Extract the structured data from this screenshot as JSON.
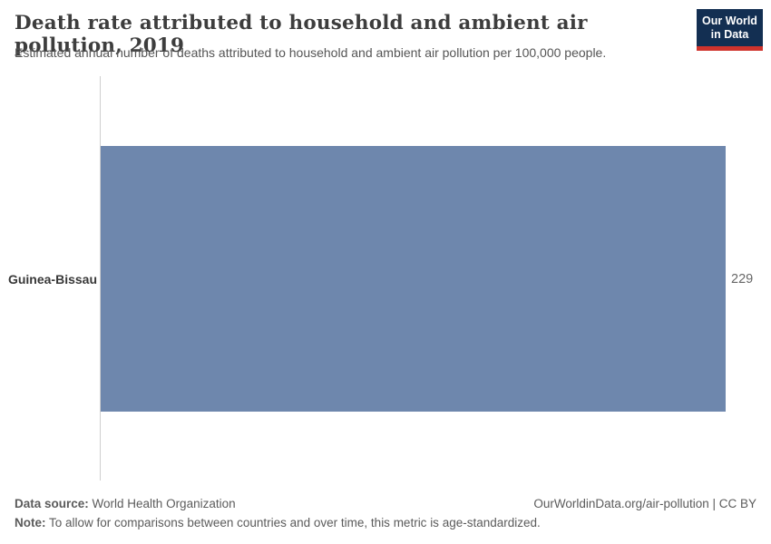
{
  "header": {
    "title": "Death rate attributed to household and ambient air pollution, 2019",
    "subtitle": "Estimated annual number of deaths attributed to household and ambient air pollution per 100,000 people.",
    "logo": {
      "line1": "Our World",
      "line2": "in Data"
    }
  },
  "chart_data": {
    "type": "bar",
    "orientation": "horizontal",
    "title": "Death rate attributed to household and ambient air pollution, 2019",
    "subtitle": "Estimated annual number of deaths attributed to household and ambient air pollution per 100,000 people.",
    "year": "2019",
    "categories": [
      "Guinea-Bissau"
    ],
    "values": [
      229
    ],
    "value_labels": [
      "229"
    ],
    "xlabel": "",
    "ylabel": "",
    "xlim": [
      0,
      229
    ],
    "grid": false,
    "legend": false,
    "bar_color": "#6e87ad"
  },
  "footer": {
    "data_source_label": "Data source:",
    "data_source_value": " World Health Organization",
    "note_label": "Note:",
    "note_value": " To allow for comparisons between countries and over time, this metric is age-standardized.",
    "link": "OurWorldinData.org/air-pollution | CC BY"
  },
  "colors": {
    "bar": "#6e87ad",
    "logo_bg": "#132f52",
    "logo_red": "#cf332c",
    "axis_line": "#cfcfcf",
    "title_text": "#3d3d3d",
    "body_text": "#555555"
  }
}
